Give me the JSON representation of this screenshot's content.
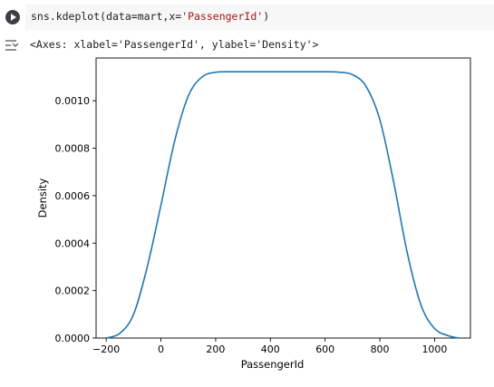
{
  "code_cell": {
    "code_prefix": "sns.kdeplot(data=mart,x=",
    "code_string": "'PassengerId'",
    "code_suffix": ")"
  },
  "output": {
    "text": "<Axes: xlabel='PassengerId', ylabel='Density'>"
  },
  "colors": {
    "line": "#1f77b4",
    "code_string": "#a31515",
    "code_background": "#f7f7f7"
  },
  "icons": {
    "run": "play-circle-icon",
    "output_toggle": "output-collapse-icon"
  },
  "chart_data": {
    "type": "line",
    "title": "",
    "xlabel": "PassengerId",
    "ylabel": "Density",
    "xlim": [
      -237,
      1131
    ],
    "ylim": [
      0,
      0.00118
    ],
    "grid": false,
    "x_ticks": [
      -200,
      0,
      200,
      400,
      600,
      800,
      1000
    ],
    "x_tick_labels": [
      "−200",
      "0",
      "200",
      "400",
      "600",
      "800",
      "1000"
    ],
    "y_ticks": [
      0.0,
      0.0002,
      0.0004,
      0.0006,
      0.0008,
      0.001
    ],
    "y_tick_labels": [
      "0.0000",
      "0.0002",
      "0.0004",
      "0.0006",
      "0.0008",
      "0.0010"
    ],
    "series": [
      {
        "x": [
          -200,
          -150,
          -100,
          -50,
          0,
          50,
          100,
          150,
          200,
          250,
          300,
          400,
          500,
          600,
          650,
          700,
          750,
          800,
          850,
          900,
          950,
          1000,
          1050,
          1090
        ],
        "values": [
          0.0,
          2e-05,
          0.0001,
          0.0003,
          0.00056,
          0.00083,
          0.00102,
          0.0011,
          0.00112,
          0.001122,
          0.001122,
          0.001122,
          0.001122,
          0.001122,
          0.00112,
          0.00111,
          0.00106,
          0.00092,
          0.00066,
          0.00036,
          0.00014,
          4e-05,
          1e-05,
          0.0
        ]
      }
    ]
  }
}
